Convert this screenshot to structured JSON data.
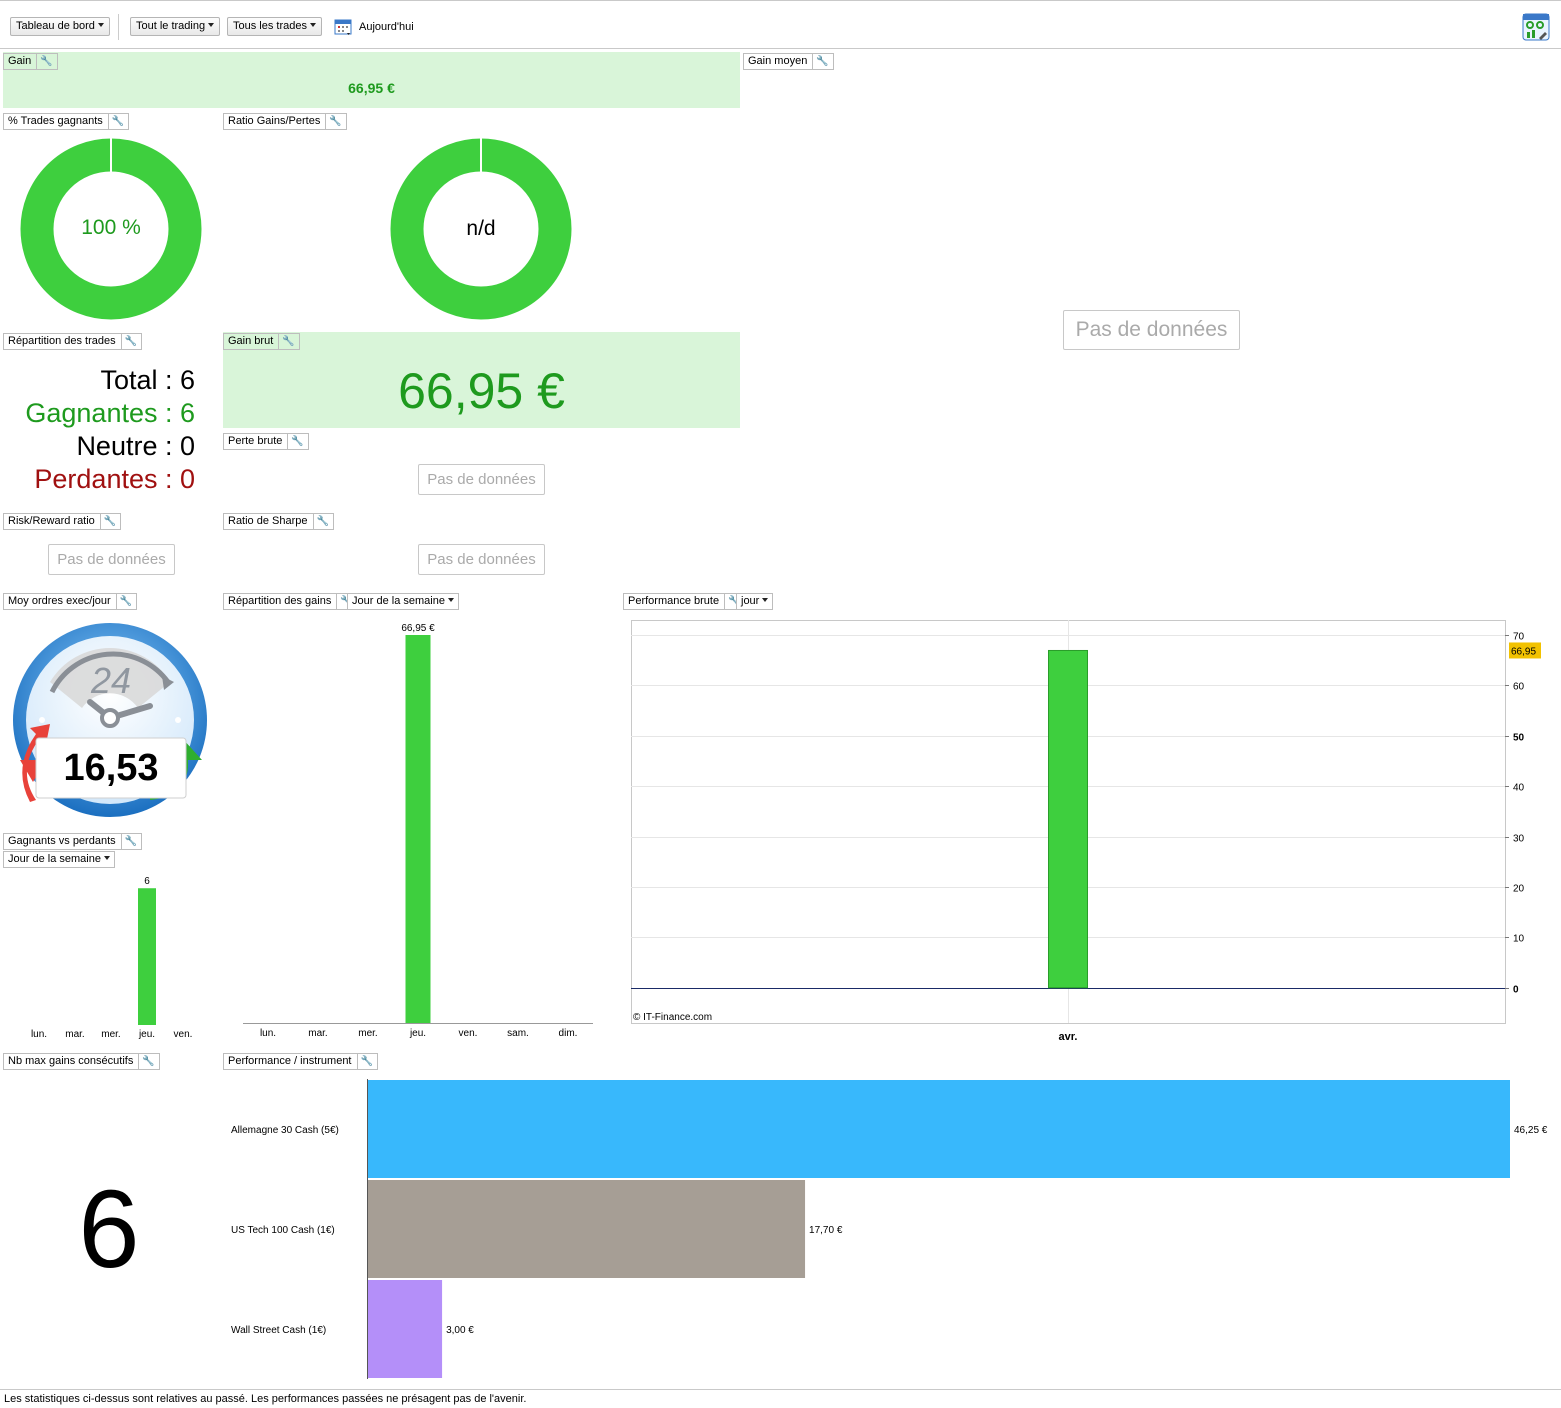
{
  "toolbar": {
    "dashboard_label": "Tableau de bord",
    "trading_filter_label": "Tout le trading",
    "trades_filter_label": "Tous les trades",
    "date_label": "Aujourd'hui",
    "icons": [
      "calendar-icon",
      "dashboard-settings-icon"
    ]
  },
  "widgets": {
    "gain": {
      "title": "Gain",
      "value": "66,95 €"
    },
    "gain_moyen": {
      "title": "Gain moyen",
      "empty": "Pas de données"
    },
    "trades_gagnants": {
      "title": "% Trades gagnants",
      "value": "100 %",
      "fraction": 1.0
    },
    "ratio_gains_pertes": {
      "title": "Ratio Gains/Pertes",
      "value": "n/d",
      "fraction": 1.0
    },
    "repartition_trades": {
      "title": "Répartition des trades",
      "total_label": "Total : 6",
      "gagnantes_label": "Gagnantes : 6",
      "neutre_label": "Neutre : 0",
      "perdantes_label": "Perdantes : 0"
    },
    "gain_brut": {
      "title": "Gain brut",
      "value": "66,95 €"
    },
    "perte_brute": {
      "title": "Perte brute",
      "empty": "Pas de données"
    },
    "risk_reward": {
      "title": "Risk/Reward ratio",
      "empty": "Pas de données"
    },
    "ratio_sharpe": {
      "title": "Ratio de Sharpe",
      "empty": "Pas de données"
    },
    "moy_ordres": {
      "title": "Moy ordres exec/jour",
      "value": "16,53",
      "dial_label": "24"
    },
    "gagnants_vs_perdants": {
      "title": "Gagnants vs perdants",
      "period": "Jour de la semaine"
    },
    "repartition_gains": {
      "title": "Répartition des gains",
      "period": "Jour de la semaine"
    },
    "performance_brute": {
      "title": "Performance brute",
      "period": "jour",
      "copyright": "© IT-Finance.com"
    },
    "nb_max_gains": {
      "title": "Nb max gains consécutifs",
      "value": "6"
    },
    "performance_instrument": {
      "title": "Performance / instrument"
    }
  },
  "chart_data": [
    {
      "id": "gagnants_vs_perdants",
      "type": "bar",
      "categories": [
        "lun.",
        "mar.",
        "mer.",
        "jeu.",
        "ven."
      ],
      "values": [
        0,
        0,
        0,
        6,
        0
      ],
      "data_labels": [
        "",
        "",
        "",
        "6",
        ""
      ],
      "ylim": [
        0,
        6.8
      ],
      "color": "#3ecf3e"
    },
    {
      "id": "repartition_gains",
      "type": "bar",
      "categories": [
        "lun.",
        "mar.",
        "mer.",
        "jeu.",
        "ven.",
        "sam.",
        "dim."
      ],
      "values": [
        0,
        0,
        0,
        66.95,
        0,
        0,
        0
      ],
      "data_labels": [
        "",
        "",
        "",
        "66,95 €",
        "",
        "",
        ""
      ],
      "ylim": [
        0,
        66.95
      ],
      "color": "#3ecf3e"
    },
    {
      "id": "performance_brute",
      "type": "bar",
      "categories": [
        "avr."
      ],
      "values": [
        66.95
      ],
      "value_badge": "66,95",
      "yticks": [
        "0",
        "10",
        "20",
        "30",
        "40",
        "50",
        "60",
        "70"
      ],
      "ylim": [
        -7,
        73
      ],
      "grid": true,
      "color": "#3ecf3e"
    },
    {
      "id": "performance_instrument",
      "type": "bar",
      "orientation": "horizontal",
      "categories": [
        "Allemagne 30 Cash (5€)",
        "US Tech 100 Cash (1€)",
        "Wall Street Cash (1€)"
      ],
      "values": [
        46.25,
        17.7,
        3.0
      ],
      "data_labels": [
        "46,25 €",
        "17,70 €",
        "3,00 €"
      ],
      "colors": [
        "#38b8fc",
        "#a69e95",
        "#b48ff9"
      ]
    }
  ],
  "footer": {
    "disclaimer": "Les statistiques ci-dessus sont relatives au passé. Les performances passées ne présagent pas de l'avenir."
  }
}
